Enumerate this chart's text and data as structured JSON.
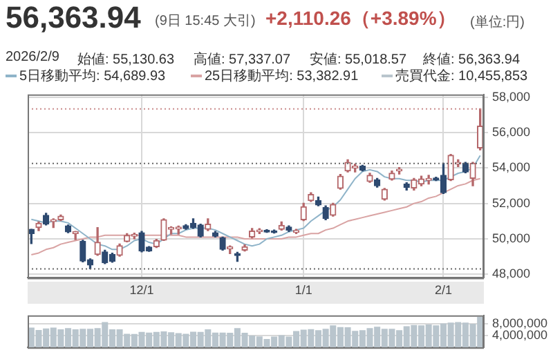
{
  "chart_data": [
    {
      "type": "candlestick",
      "title": "56,363.94",
      "subtitle": "(9日 15:45 大引)",
      "annotations": [
        "+2,110.26（+3.89%）",
        "(単位:円)",
        "2026/2/9",
        "始値: 55,130.63",
        "高値: 57,337.07",
        "安値: 55,018.57",
        "終値: 56,363.94",
        "5日移動平均: 54,689.93",
        "25日移動平均: 53,382.91",
        "売買代金: 10,455,853"
      ],
      "categories": [
        null,
        null,
        null,
        null,
        null,
        null,
        null,
        null,
        null,
        null,
        null,
        null,
        null,
        null,
        null,
        "12/1",
        null,
        null,
        null,
        null,
        null,
        null,
        null,
        null,
        null,
        null,
        null,
        null,
        null,
        null,
        null,
        null,
        null,
        null,
        null,
        null,
        null,
        "1/1",
        null,
        null,
        null,
        null,
        null,
        null,
        null,
        null,
        null,
        null,
        null,
        null,
        null,
        null,
        null,
        null,
        null,
        null,
        "2/1",
        null,
        null,
        null,
        null,
        null
      ],
      "ohlc": [
        [
          50540,
          50540,
          49730,
          50295
        ],
        [
          50638,
          50957,
          50466,
          50883
        ],
        [
          51325,
          51448,
          50785,
          50834
        ],
        [
          50981,
          51129,
          50638,
          51080
        ],
        [
          51080,
          51350,
          51031,
          51276
        ],
        [
          50736,
          50785,
          50343,
          50392
        ],
        [
          50300,
          50420,
          49951,
          50400
        ],
        [
          49853,
          49926,
          48699,
          48749
        ],
        [
          48822,
          48871,
          48307,
          48528
        ],
        [
          49116,
          50638,
          49067,
          49804
        ],
        [
          49264,
          49362,
          48601,
          48650
        ],
        [
          49116,
          49190,
          48675,
          48724
        ],
        [
          49067,
          49706,
          49018,
          49607
        ],
        [
          49853,
          50294,
          49828,
          50196
        ],
        [
          50150,
          50319,
          50000,
          50250
        ],
        [
          50343,
          50417,
          49264,
          49313
        ],
        [
          49534,
          49560,
          49290,
          49313
        ],
        [
          49558,
          49976,
          49509,
          49902
        ],
        [
          49926,
          51129,
          49902,
          51080
        ],
        [
          50540,
          50687,
          50270,
          50640
        ],
        [
          50560,
          50720,
          50270,
          50660
        ],
        [
          50740,
          50800,
          50540,
          50580
        ],
        [
          50883,
          51129,
          50589,
          50638
        ],
        [
          50785,
          50834,
          50098,
          50147
        ],
        [
          50540,
          51129,
          50466,
          50834
        ],
        [
          50343,
          50417,
          50098,
          50147
        ],
        [
          50049,
          50098,
          49362,
          49411
        ],
        [
          49440,
          49600,
          49166,
          49540
        ],
        [
          49160,
          49239,
          48724,
          49060
        ],
        [
          49362,
          49656,
          49313,
          49558
        ],
        [
          50098,
          50589,
          50049,
          50441
        ],
        [
          50400,
          50580,
          50294,
          50500
        ],
        [
          50480,
          50520,
          50360,
          50380
        ],
        [
          50450,
          50500,
          50330,
          50350
        ],
        [
          50540,
          50957,
          50490,
          50760
        ],
        [
          50662,
          50736,
          50417,
          50490
        ],
        [
          50368,
          50540,
          50294,
          50466
        ],
        [
          51080,
          52012,
          51031,
          51816
        ],
        [
          52160,
          52601,
          52110,
          52503
        ],
        [
          52160,
          52356,
          51865,
          51914
        ],
        [
          51767,
          51865,
          51080,
          51153
        ],
        [
          51325,
          52012,
          51276,
          51939
        ],
        [
          52847,
          53632,
          52797,
          53533
        ],
        [
          53828,
          54466,
          53779,
          54319
        ],
        [
          54000,
          54221,
          53779,
          54100
        ],
        [
          54098,
          54147,
          53828,
          53877
        ],
        [
          53239,
          53706,
          53190,
          53583
        ],
        [
          53337,
          53411,
          52920,
          52994
        ],
        [
          52233,
          52846,
          52184,
          52797
        ],
        [
          53362,
          53828,
          53313,
          53706
        ],
        [
          53830,
          54025,
          53656,
          53930
        ],
        [
          53092,
          53166,
          52748,
          52896
        ],
        [
          52871,
          53411,
          52748,
          53337
        ],
        [
          53092,
          53533,
          52994,
          53386
        ],
        [
          53310,
          53583,
          53092,
          53410
        ],
        [
          53430,
          53480,
          53288,
          53330
        ],
        [
          53583,
          54270,
          52552,
          52601
        ],
        [
          53337,
          54761,
          53288,
          54712
        ],
        [
          54220,
          54466,
          54074,
          54320
        ],
        [
          54270,
          54319,
          53730,
          53779
        ],
        [
          53411,
          54319,
          52994,
          54270
        ],
        [
          55130.63,
          57337.07,
          55018.57,
          56363.94
        ]
      ],
      "colors": [
        "#2e4a70",
        "#b5676a",
        "#2e4a70",
        "#b5676a",
        "#b5676a",
        "#2e4a70",
        "#b5676a",
        "#2e4a70",
        "#2e4a70",
        "#b5676a",
        "#2e4a70",
        "#2e4a70",
        "#b5676a",
        "#b5676a",
        "#b5676a",
        "#2e4a70",
        "#2e4a70",
        "#b5676a",
        "#b5676a",
        "#b5676a",
        "#b5676a",
        "#2e4a70",
        "#2e4a70",
        "#2e4a70",
        "#b5676a",
        "#2e4a70",
        "#2e4a70",
        "#b5676a",
        "#2e4a70",
        "#b5676a",
        "#b5676a",
        "#b5676a",
        "#2e4a70",
        "#2e4a70",
        "#b5676a",
        "#2e4a70",
        "#b5676a",
        "#b5676a",
        "#b5676a",
        "#2e4a70",
        "#2e4a70",
        "#b5676a",
        "#b5676a",
        "#b5676a",
        "#b5676a",
        "#2e4a70",
        "#b5676a",
        "#2e4a70",
        "#b5676a",
        "#b5676a",
        "#b5676a",
        "#2e4a70",
        "#b5676a",
        "#b5676a",
        "#b5676a",
        "#2e4a70",
        "#2e4a70",
        "#b5676a",
        "#b5676a",
        "#2e4a70",
        "#b5676a",
        "#b5676a"
      ],
      "series": [
        {
          "type": "line",
          "color": "#8fb4c9",
          "values": [
            51100,
            51000,
            50900,
            51000,
            51000,
            50900,
            50600,
            50300,
            50000,
            49700,
            49600,
            49400,
            49400,
            49600,
            49900,
            50000,
            49800,
            49700,
            50000,
            50300,
            50300,
            50500,
            50600,
            50600,
            50600,
            50500,
            50300,
            50100,
            49900,
            49700,
            49600,
            49700,
            50000,
            50100,
            50200,
            50400,
            50500,
            50600,
            51000,
            51300,
            51600,
            51800,
            52200,
            52800,
            53400,
            53800,
            53900,
            53800,
            53500,
            53400,
            53400,
            53300,
            53300,
            53200,
            53300,
            53300,
            53300,
            53500,
            53700,
            53800,
            54000,
            54700
          ]
        },
        {
          "type": "line",
          "color": "#d9a3a3",
          "values": [
            49100,
            49200,
            49400,
            49500,
            49700,
            49800,
            49900,
            50000,
            50100,
            50100,
            50200,
            50200,
            50200,
            50200,
            50200,
            50200,
            50200,
            50200,
            50200,
            50200,
            50200,
            50100,
            50100,
            50100,
            50100,
            50100,
            50100,
            50100,
            50100,
            50000,
            50000,
            50000,
            50000,
            50000,
            50000,
            50100,
            50100,
            50200,
            50300,
            50300,
            50500,
            50600,
            50800,
            51000,
            51100,
            51200,
            51300,
            51400,
            51500,
            51600,
            51700,
            51800,
            52000,
            52100,
            52300,
            52400,
            52600,
            52800,
            53000,
            53100,
            53300,
            53400
          ]
        }
      ],
      "ylim": [
        47800,
        58150
      ],
      "yticks": [
        {
          "value": 48000,
          "label": "48,000"
        },
        {
          "value": 50000,
          "label": "50,000"
        },
        {
          "value": 52000,
          "label": "52,000"
        },
        {
          "value": 54000,
          "label": "54,000"
        },
        {
          "value": 56000,
          "label": "56,000"
        },
        {
          "value": 58000,
          "label": "58,000"
        }
      ],
      "ref_lines": [
        {
          "axis": "y",
          "value": 57337,
          "color": "#c98a8a",
          "line_style": "dotted"
        },
        {
          "axis": "y",
          "value": 54254,
          "color": "#666666",
          "line_style": "dotted"
        },
        {
          "axis": "y",
          "value": 48307,
          "color": "#666666",
          "line_style": "dotted"
        }
      ],
      "grid": true,
      "marker": "none"
    },
    {
      "type": "bar",
      "categories": [
        null,
        null,
        null,
        null,
        null,
        null,
        null,
        null,
        null,
        null,
        null,
        null,
        null,
        null,
        null,
        null,
        null,
        null,
        null,
        null,
        null,
        null,
        null,
        null,
        null,
        null,
        null,
        null,
        null,
        null,
        null,
        null,
        null,
        null,
        null,
        null,
        null,
        null,
        null,
        null,
        null,
        null,
        null,
        null,
        null,
        null,
        null,
        null,
        null,
        null,
        null,
        null,
        null,
        null,
        null,
        null,
        null,
        null,
        null,
        null,
        null,
        null
      ],
      "values": [
        6800000,
        6000000,
        6500000,
        6800000,
        6200000,
        6600000,
        6200000,
        6400000,
        6400000,
        6600000,
        8700000,
        6200000,
        6200000,
        4700000,
        4600000,
        5300000,
        5100000,
        5300000,
        5500000,
        5200000,
        4900000,
        4700000,
        5400000,
        5300000,
        6200000,
        5100000,
        5100000,
        5000000,
        6600000,
        5000000,
        4100000,
        3800000,
        2900000,
        3700000,
        4200000,
        3700000,
        5600000,
        6100000,
        6300000,
        5900000,
        6400000,
        7600000,
        7000000,
        6900000,
        5700000,
        5900000,
        6600000,
        7100000,
        6400000,
        6400000,
        5900000,
        7300000,
        7700000,
        7600000,
        7900000,
        7600000,
        8200000,
        8500000,
        8700000,
        8500000,
        8100000,
        10500000
      ],
      "color": "#b9c5cd",
      "ylim": [
        0,
        11000000
      ],
      "yticks": [
        {
          "value": 4000000,
          "label": "4,000,000"
        },
        {
          "value": 8000000,
          "label": "8,000,000"
        }
      ],
      "tick_labels": "y",
      "grid": "y"
    }
  ]
}
